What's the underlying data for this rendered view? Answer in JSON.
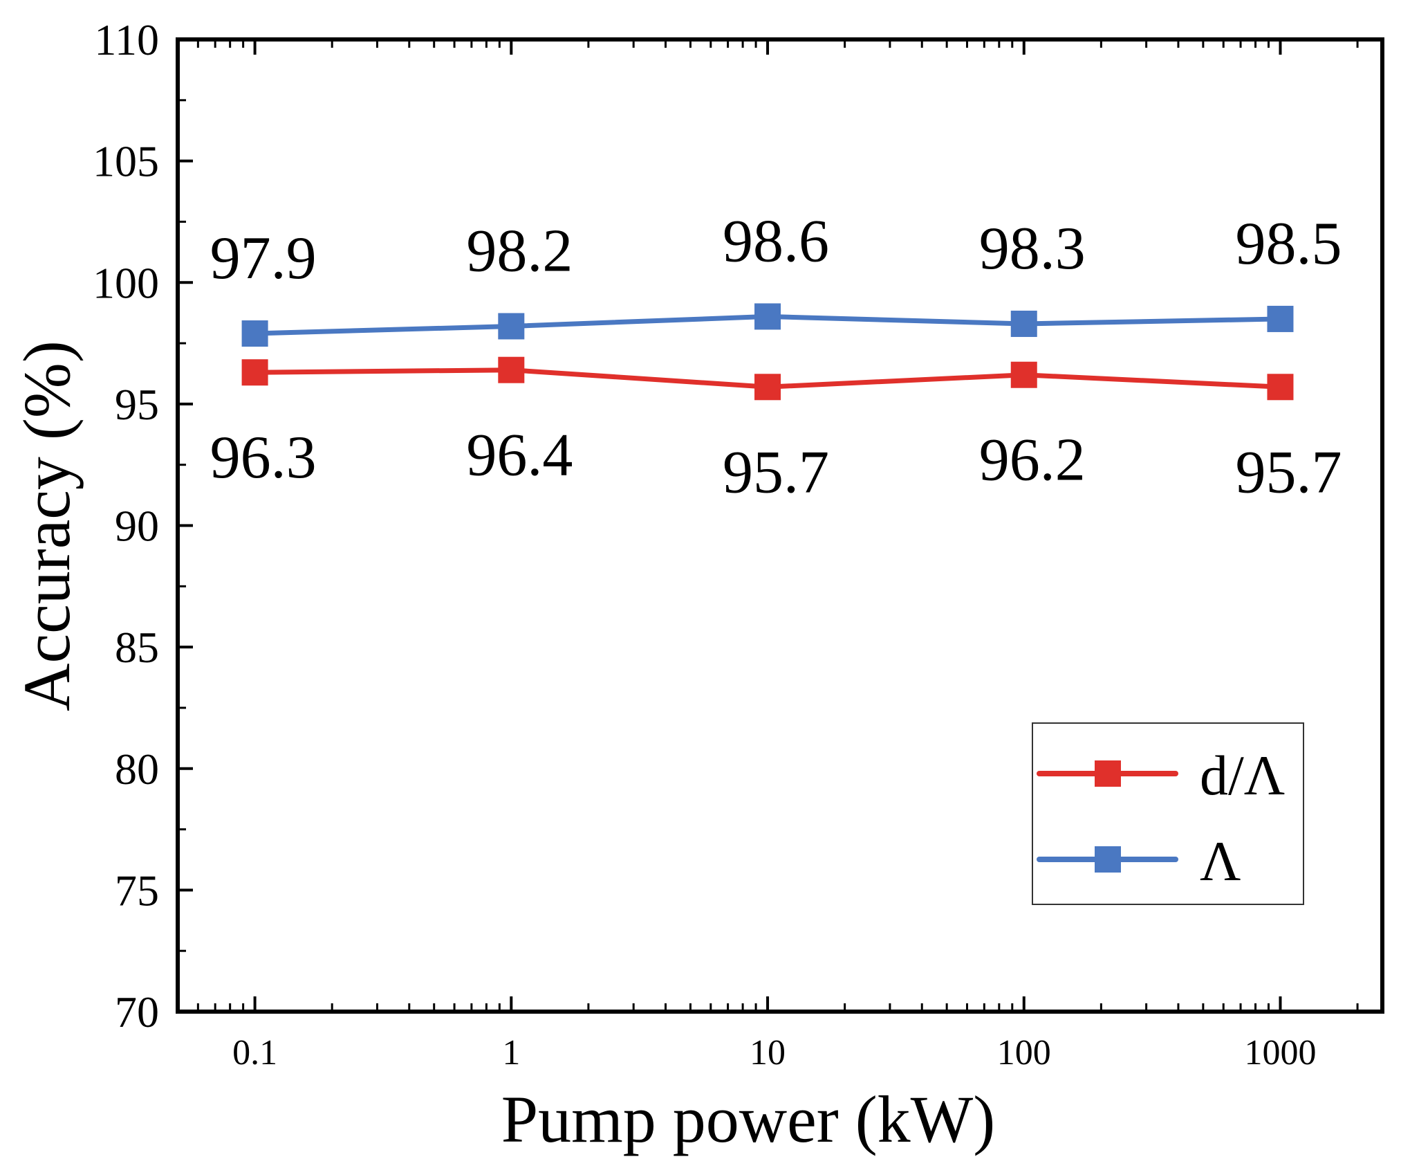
{
  "chart_data": {
    "type": "line",
    "title": "",
    "xlabel": "Pump power (kW)",
    "ylabel": "Accuracy  (%)",
    "xscale": "log",
    "x": [
      0.1,
      1,
      10,
      100,
      1000
    ],
    "xlim": [
      0.05,
      2500
    ],
    "ylim": [
      70,
      110
    ],
    "x_tick_labels": [
      "0.1",
      "1",
      "10",
      "100",
      "1000"
    ],
    "y_ticks": [
      70,
      75,
      80,
      85,
      90,
      95,
      100,
      105,
      110
    ],
    "y_tick_labels": [
      "70",
      "75",
      "80",
      "85",
      "90",
      "95",
      "100",
      "105",
      "110"
    ],
    "grid": false,
    "legend_position": "bottom-right",
    "series": [
      {
        "name": "d/Λ",
        "color": "#e0302b",
        "marker": "square",
        "values": [
          96.3,
          96.4,
          95.7,
          96.2,
          95.7
        ],
        "labels": [
          "96.3",
          "96.4",
          "95.7",
          "96.2",
          "95.7"
        ],
        "label_position": "below"
      },
      {
        "name": "Λ",
        "color": "#4a78c2",
        "marker": "square",
        "values": [
          97.9,
          98.2,
          98.6,
          98.3,
          98.5
        ],
        "labels": [
          "97.9",
          "98.2",
          "98.6",
          "98.3",
          "98.5"
        ],
        "label_position": "above"
      }
    ]
  }
}
